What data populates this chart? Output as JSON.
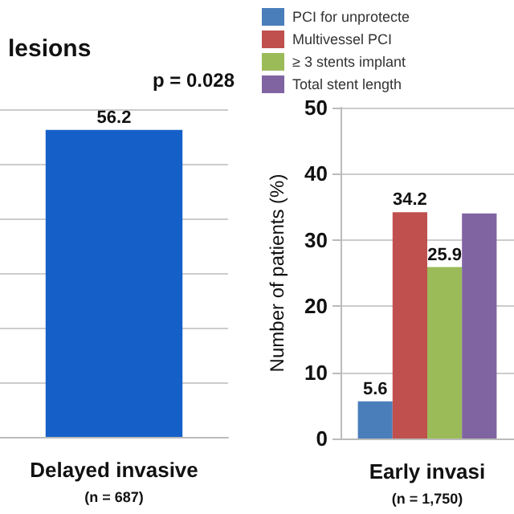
{
  "chart_data": [
    {
      "type": "bar",
      "title": "lesions",
      "categories": [
        "Delayed invasive"
      ],
      "xlabel": "(n = 687)",
      "series": [
        {
          "color": "#1560c8",
          "values": [
            56.2
          ]
        }
      ],
      "ylim": [
        0,
        60
      ],
      "yticks": [
        {
          "value": 0,
          "label": null
        },
        {
          "value": 10,
          "label": null
        },
        {
          "value": 20,
          "label": null
        },
        {
          "value": 30,
          "label": null
        },
        {
          "value": 40,
          "label": null
        },
        {
          "value": 50,
          "label": null
        },
        {
          "value": 60,
          "label": null
        }
      ],
      "tick_labels": "x",
      "grid": "y",
      "data_labels": true,
      "annotations": [
        "p = 0.028"
      ]
    },
    {
      "type": "bar",
      "categories": [
        "Early invasi"
      ],
      "xlabel": "(n = 1,750)",
      "ylabel": "Number of patients (%)",
      "series": [
        {
          "name": "PCI for unprotecte",
          "color": "#4a7ebb",
          "values": [
            5.6
          ],
          "value_labels": [
            "5.6"
          ]
        },
        {
          "name": "Multivessel PCI",
          "color": "#c0504d",
          "values": [
            34.2
          ],
          "value_labels": [
            "34.2"
          ]
        },
        {
          "name": "≥ 3 stents implant",
          "color": "#9bbb59",
          "values": [
            25.9
          ],
          "value_labels": [
            "25.9"
          ]
        },
        {
          "name": "Total stent length",
          "color": "#8064a2",
          "values": [
            34.0
          ],
          "value_labels": [
            null
          ]
        }
      ],
      "ylim": [
        0,
        50
      ],
      "yticks": [
        0,
        10,
        20,
        30,
        40,
        50
      ],
      "grid": "y",
      "legend": "top"
    }
  ]
}
